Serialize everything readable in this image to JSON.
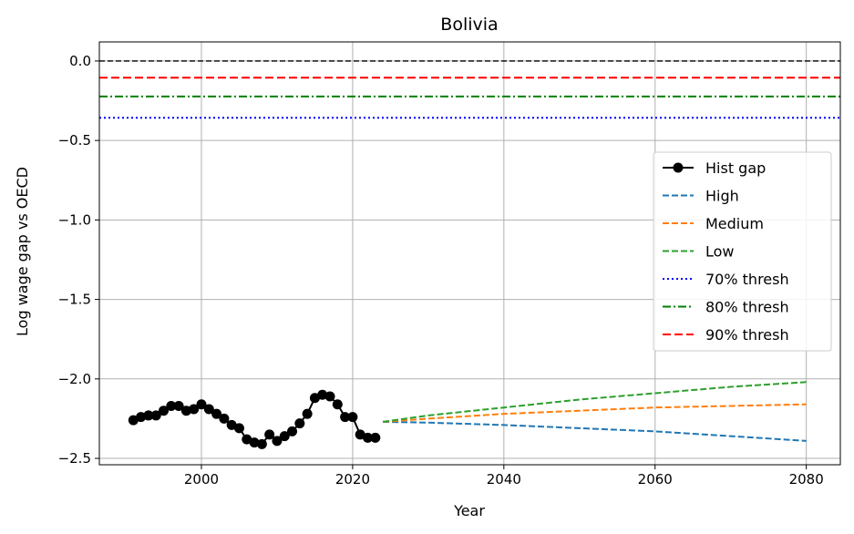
{
  "chart_data": {
    "type": "line",
    "title": "Bolivia",
    "xlabel": "Year",
    "ylabel": "Log wage gap vs OECD",
    "xlim": [
      1986.5,
      2084.5
    ],
    "ylim": [
      -2.54,
      0.12
    ],
    "xticks": [
      2000,
      2020,
      2040,
      2060,
      2080
    ],
    "yticks": [
      0.0,
      -0.5,
      -1.0,
      -1.5,
      -2.0,
      -2.5
    ],
    "xtick_labels": [
      "2000",
      "2020",
      "2040",
      "2060",
      "2080"
    ],
    "ytick_labels": [
      "0.0",
      "−0.5",
      "−1.0",
      "−1.5",
      "−2.0",
      "−2.5"
    ],
    "grid": true,
    "legend_position": "right",
    "hist": {
      "name": "Hist gap",
      "color": "#000000",
      "x": [
        1991,
        1992,
        1993,
        1994,
        1995,
        1996,
        1997,
        1998,
        1999,
        2000,
        2001,
        2002,
        2003,
        2004,
        2005,
        2006,
        2007,
        2008,
        2009,
        2010,
        2011,
        2012,
        2013,
        2014,
        2015,
        2016,
        2017,
        2018,
        2019,
        2020,
        2021,
        2022,
        2023
      ],
      "y": [
        -2.26,
        -2.24,
        -2.23,
        -2.23,
        -2.2,
        -2.17,
        -2.17,
        -2.2,
        -2.19,
        -2.16,
        -2.19,
        -2.22,
        -2.25,
        -2.29,
        -2.31,
        -2.38,
        -2.4,
        -2.41,
        -2.35,
        -2.39,
        -2.36,
        -2.33,
        -2.28,
        -2.22,
        -2.12,
        -2.1,
        -2.11,
        -2.16,
        -2.24,
        -2.24,
        -2.35,
        -2.37,
        -2.37
      ]
    },
    "series": [
      {
        "name": "High",
        "color": "#1f77b4",
        "x": [
          2024,
          2030,
          2040,
          2050,
          2060,
          2070,
          2080
        ],
        "y": [
          -2.27,
          -2.275,
          -2.29,
          -2.31,
          -2.33,
          -2.36,
          -2.39
        ]
      },
      {
        "name": "Medium",
        "color": "#ff7f0e",
        "x": [
          2024,
          2030,
          2040,
          2050,
          2060,
          2070,
          2080
        ],
        "y": [
          -2.27,
          -2.25,
          -2.22,
          -2.2,
          -2.18,
          -2.17,
          -2.16
        ]
      },
      {
        "name": "Low",
        "color": "#2ca02c",
        "x": [
          2024,
          2030,
          2040,
          2050,
          2060,
          2070,
          2080
        ],
        "y": [
          -2.27,
          -2.23,
          -2.18,
          -2.13,
          -2.09,
          -2.05,
          -2.02
        ]
      }
    ],
    "hlines": [
      {
        "name": "",
        "y": 0.0,
        "color": "#000000",
        "style": "dashed-thin"
      },
      {
        "name": "90% thresh",
        "y": -0.105,
        "color": "#ff0000",
        "style": "dashed"
      },
      {
        "name": "80% thresh",
        "y": -0.223,
        "color": "#008000",
        "style": "dashdot"
      },
      {
        "name": "70% thresh",
        "y": -0.357,
        "color": "#0000ff",
        "style": "dotted"
      }
    ],
    "legend": [
      "Hist gap",
      "High",
      "Medium",
      "Low",
      "70% thresh",
      "80% thresh",
      "90% thresh"
    ]
  }
}
